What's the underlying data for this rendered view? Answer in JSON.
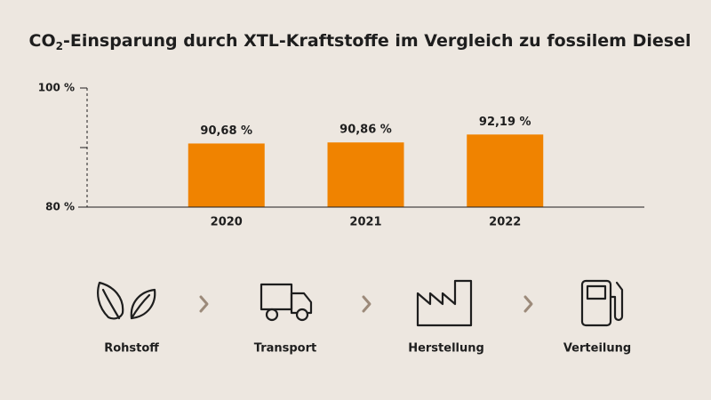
{
  "chart_data": {
    "type": "bar",
    "title": [
      "CO",
      "2",
      "-Einsparung durch XTL-Kraftstoffe im Vergleich zu fossilem Diesel"
    ],
    "categories": [
      "2020",
      "2021",
      "2022"
    ],
    "values": [
      90.68,
      90.86,
      92.19
    ],
    "value_labels": [
      "90,68 %",
      "90,86 %",
      "92,19 %"
    ],
    "color": "#f08300",
    "ylim": [
      80,
      100
    ],
    "yticks": [
      {
        "value": 80,
        "label": "80 %"
      },
      {
        "value": 100,
        "label": "100 %"
      }
    ],
    "yminor_ticks": [
      90
    ]
  },
  "process": {
    "steps": [
      "Rohstoff",
      "Transport",
      "Herstellung",
      "Verteilung"
    ]
  }
}
